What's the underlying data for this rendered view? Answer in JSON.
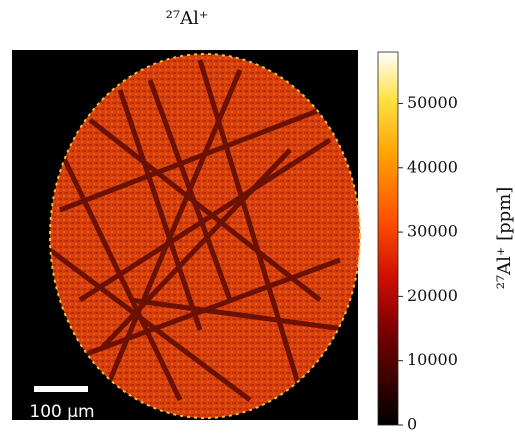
{
  "chart_data": {
    "type": "image",
    "title": "²⁷Al⁺",
    "colorbar": {
      "label": "²⁷Al⁺ [ppm]",
      "colormap": "hot",
      "clim": [
        0,
        58000
      ],
      "ticks": [
        0,
        10000,
        20000,
        30000,
        40000,
        50000
      ]
    },
    "scale_bar": "100 μm"
  }
}
